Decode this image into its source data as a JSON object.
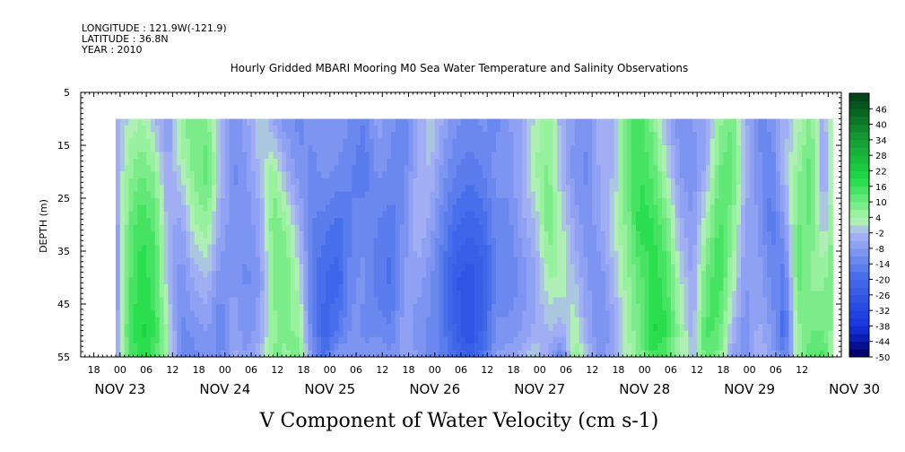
{
  "header": {
    "longitude": "LONGITUDE : 121.9W(-121.9)",
    "latitude": "LATITUDE : 36.8N",
    "year": "YEAR : 2010",
    "title": "Hourly Gridded MBARI Mooring M0 Sea Water Temperature and Salinity Observations"
  },
  "chart_data": {
    "type": "heatmap",
    "title": "Hourly Gridded MBARI Mooring M0 Sea Water Temperature and Salinity Observations",
    "xlabel": "V Component of Water Velocity (cm s-1)",
    "ylabel": "DEPTH (m)",
    "x_hour_ticks": [
      "18",
      "00",
      "06",
      "12",
      "18",
      "00",
      "06",
      "12",
      "18",
      "00",
      "06",
      "12",
      "18",
      "00",
      "06",
      "12",
      "18",
      "00",
      "06",
      "12",
      "18",
      "00",
      "06",
      "12",
      "18",
      "00",
      "06",
      "12"
    ],
    "x_day_labels": [
      "NOV 23",
      "NOV 24",
      "NOV 25",
      "NOV 26",
      "NOV 27",
      "NOV 28",
      "NOV 29",
      "NOV 30"
    ],
    "x_range_hours": [
      -9,
      165
    ],
    "data_start_hour": -1,
    "data_end_hour": 163,
    "y_ticks": [
      "5",
      "15",
      "25",
      "35",
      "45",
      "55"
    ],
    "y_range": [
      5,
      55
    ],
    "data_depth_range": [
      10,
      55
    ],
    "colorbar_labels": [
      "46",
      "40",
      "34",
      "28",
      "22",
      "16",
      "10",
      "4",
      "-2",
      "-8",
      "-14",
      "-20",
      "-26",
      "-32",
      "-38",
      "-44",
      "-50"
    ],
    "colorbar_range": [
      -50,
      50
    ],
    "colorbar_step": 3,
    "time_hours": [
      -1,
      2,
      5,
      8,
      11,
      14,
      17,
      20,
      23,
      26,
      29,
      32,
      35,
      38,
      41,
      44,
      47,
      50,
      53,
      56,
      59,
      62,
      65,
      68,
      71,
      74,
      77,
      80,
      83,
      86,
      89,
      92,
      95,
      98,
      101,
      104,
      107,
      110,
      113,
      116,
      119,
      122,
      125,
      128,
      131,
      134,
      137,
      140,
      143,
      146,
      149,
      152,
      155,
      158,
      161,
      163
    ],
    "depths": [
      10,
      20,
      30,
      40,
      50,
      55
    ],
    "values": [
      [
        -6,
        -4,
        -8,
        -10,
        -8,
        -6
      ],
      [
        2,
        6,
        10,
        12,
        14,
        12
      ],
      [
        4,
        10,
        16,
        18,
        20,
        18
      ],
      [
        -2,
        6,
        12,
        14,
        16,
        14
      ],
      [
        -8,
        -6,
        -4,
        -2,
        2,
        4
      ],
      [
        6,
        2,
        -6,
        -10,
        -12,
        -14
      ],
      [
        10,
        8,
        4,
        -4,
        -10,
        -12
      ],
      [
        8,
        12,
        6,
        -2,
        -8,
        -10
      ],
      [
        -4,
        -2,
        -6,
        -10,
        -14,
        -12
      ],
      [
        -10,
        -12,
        -10,
        -8,
        -6,
        -4
      ],
      [
        -6,
        -8,
        -10,
        -12,
        -10,
        -8
      ],
      [
        2,
        -2,
        -6,
        -8,
        -6,
        -2
      ],
      [
        -6,
        6,
        10,
        8,
        6,
        8
      ],
      [
        -10,
        -4,
        6,
        10,
        8,
        6
      ],
      [
        -12,
        -10,
        -4,
        2,
        6,
        10
      ],
      [
        -10,
        -12,
        -14,
        -16,
        -14,
        -10
      ],
      [
        -8,
        -10,
        -16,
        -20,
        -22,
        -18
      ],
      [
        -8,
        -12,
        -18,
        -22,
        -16,
        -8
      ],
      [
        -12,
        -14,
        -14,
        -12,
        -10,
        -8
      ],
      [
        -14,
        -16,
        -12,
        -10,
        -12,
        -10
      ],
      [
        -6,
        -10,
        -14,
        -16,
        -12,
        -8
      ],
      [
        -10,
        -12,
        -16,
        -18,
        -14,
        -10
      ],
      [
        -14,
        -12,
        -10,
        -8,
        -6,
        -6
      ],
      [
        -6,
        -4,
        -2,
        -6,
        -10,
        -8
      ],
      [
        2,
        -2,
        -6,
        -10,
        -12,
        -14
      ],
      [
        -6,
        -10,
        -14,
        -18,
        -16,
        -14
      ],
      [
        -10,
        -14,
        -20,
        -26,
        -24,
        -20
      ],
      [
        -12,
        -16,
        -22,
        -28,
        -30,
        -24
      ],
      [
        -10,
        -14,
        -20,
        -24,
        -22,
        -18
      ],
      [
        -12,
        -10,
        -12,
        -14,
        -10,
        -8
      ],
      [
        -8,
        -10,
        -12,
        -14,
        -10,
        -6
      ],
      [
        -6,
        -4,
        -6,
        -10,
        -8,
        -4
      ],
      [
        2,
        4,
        -2,
        -6,
        -4,
        2
      ],
      [
        6,
        8,
        10,
        4,
        -2,
        -6
      ],
      [
        -4,
        -2,
        2,
        4,
        -4,
        -14
      ],
      [
        -8,
        -10,
        -6,
        -2,
        4,
        8
      ],
      [
        -10,
        -12,
        -10,
        -8,
        -6,
        -2
      ],
      [
        -2,
        -4,
        -6,
        -10,
        -12,
        -10
      ],
      [
        -4,
        -2,
        2,
        -2,
        -6,
        -4
      ],
      [
        12,
        10,
        8,
        6,
        4,
        2
      ],
      [
        14,
        16,
        18,
        12,
        10,
        8
      ],
      [
        8,
        12,
        16,
        18,
        20,
        16
      ],
      [
        -4,
        2,
        10,
        14,
        16,
        12
      ],
      [
        -10,
        -8,
        -4,
        2,
        6,
        4
      ],
      [
        -8,
        -10,
        -8,
        -6,
        -4,
        -2
      ],
      [
        -6,
        -4,
        4,
        10,
        14,
        12
      ],
      [
        6,
        10,
        14,
        16,
        12,
        8
      ],
      [
        10,
        12,
        8,
        4,
        -2,
        -6
      ],
      [
        -4,
        -2,
        -6,
        -8,
        -10,
        -10
      ],
      [
        -12,
        -10,
        -8,
        -6,
        -4,
        -2
      ],
      [
        -10,
        -14,
        -16,
        -12,
        -8,
        -6
      ],
      [
        -4,
        -2,
        -8,
        -16,
        -20,
        -14
      ],
      [
        2,
        6,
        10,
        12,
        6,
        4
      ],
      [
        8,
        12,
        10,
        6,
        10,
        12
      ],
      [
        -4,
        -6,
        -2,
        6,
        10,
        14
      ],
      [
        6,
        4,
        8,
        10,
        6,
        4
      ]
    ]
  }
}
